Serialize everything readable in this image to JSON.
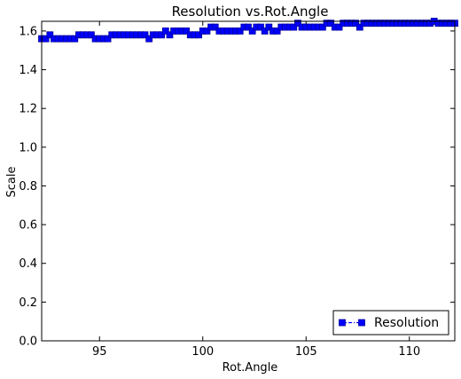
{
  "chart_data": {
    "type": "line",
    "title": "Resolution vs.Rot.Angle",
    "xlabel": "Rot.Angle",
    "ylabel": "Scale",
    "xlim": [
      92.2,
      112.2
    ],
    "ylim": [
      0.0,
      1.65
    ],
    "xticks": [
      95,
      100,
      105,
      110
    ],
    "xtick_labels": [
      "95",
      "100",
      "105",
      "110"
    ],
    "yticks": [
      0.0,
      0.2,
      0.4,
      0.6,
      0.8,
      1.0,
      1.2,
      1.4,
      1.6
    ],
    "ytick_labels": [
      "0.0",
      "0.2",
      "0.4",
      "0.6",
      "0.8",
      "1.0",
      "1.2",
      "1.4",
      "1.6"
    ],
    "grid": false,
    "legend_position": "lower-right",
    "series": [
      {
        "name": "Resolution",
        "color": "#0000ff",
        "marker": "square",
        "linestyle": "dash-dot",
        "x": [
          92.2,
          92.4,
          92.6,
          92.8,
          93.0,
          93.2,
          93.4,
          93.6,
          93.8,
          94.0,
          94.2,
          94.4,
          94.6,
          94.8,
          95.0,
          95.2,
          95.4,
          95.6,
          95.8,
          96.0,
          96.2,
          96.4,
          96.6,
          96.8,
          97.0,
          97.2,
          97.4,
          97.6,
          97.8,
          98.0,
          98.2,
          98.4,
          98.6,
          98.8,
          99.0,
          99.2,
          99.4,
          99.6,
          99.8,
          100.0,
          100.2,
          100.4,
          100.6,
          100.8,
          101.0,
          101.2,
          101.4,
          101.6,
          101.8,
          102.0,
          102.2,
          102.4,
          102.6,
          102.8,
          103.0,
          103.2,
          103.4,
          103.6,
          103.8,
          104.0,
          104.2,
          104.4,
          104.6,
          104.8,
          105.0,
          105.2,
          105.4,
          105.6,
          105.8,
          106.0,
          106.2,
          106.4,
          106.6,
          106.8,
          107.0,
          107.2,
          107.4,
          107.6,
          107.8,
          108.0,
          108.2,
          108.4,
          108.6,
          108.8,
          109.0,
          109.2,
          109.4,
          109.6,
          109.8,
          110.0,
          110.2,
          110.4,
          110.6,
          110.8,
          111.0,
          111.2,
          111.4,
          111.6,
          111.8,
          112.0,
          112.2
        ],
        "values": [
          1.56,
          1.56,
          1.58,
          1.56,
          1.56,
          1.56,
          1.56,
          1.56,
          1.56,
          1.58,
          1.58,
          1.58,
          1.58,
          1.56,
          1.56,
          1.56,
          1.56,
          1.58,
          1.58,
          1.58,
          1.58,
          1.58,
          1.58,
          1.58,
          1.58,
          1.58,
          1.56,
          1.58,
          1.58,
          1.58,
          1.6,
          1.58,
          1.6,
          1.6,
          1.6,
          1.6,
          1.58,
          1.58,
          1.58,
          1.6,
          1.6,
          1.62,
          1.62,
          1.6,
          1.6,
          1.6,
          1.6,
          1.6,
          1.6,
          1.62,
          1.62,
          1.6,
          1.62,
          1.62,
          1.6,
          1.62,
          1.6,
          1.6,
          1.62,
          1.62,
          1.62,
          1.62,
          1.64,
          1.62,
          1.62,
          1.62,
          1.62,
          1.62,
          1.62,
          1.64,
          1.64,
          1.62,
          1.62,
          1.64,
          1.64,
          1.64,
          1.64,
          1.62,
          1.64,
          1.64,
          1.64,
          1.64,
          1.64,
          1.64,
          1.64,
          1.64,
          1.64,
          1.64,
          1.64,
          1.64,
          1.64,
          1.64,
          1.64,
          1.64,
          1.64,
          1.65,
          1.64,
          1.64,
          1.64,
          1.64,
          1.64
        ]
      }
    ]
  }
}
